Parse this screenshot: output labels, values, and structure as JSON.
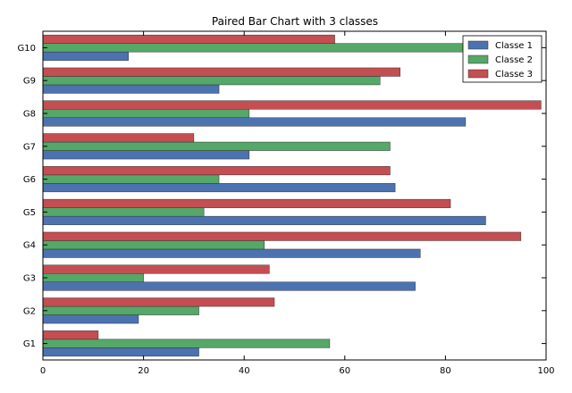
{
  "chart_data": {
    "type": "bar",
    "orientation": "horizontal",
    "title": "Paired Bar Chart with 3 classes",
    "xlabel": "",
    "ylabel": "",
    "xlim": [
      0,
      100
    ],
    "xticks": [
      0,
      20,
      40,
      60,
      80,
      100
    ],
    "categories": [
      "G1",
      "G2",
      "G3",
      "G4",
      "G5",
      "G6",
      "G7",
      "G8",
      "G9",
      "G10"
    ],
    "series": [
      {
        "name": "Classe 1",
        "color": "#4c72b0",
        "values": [
          31,
          19,
          74,
          75,
          88,
          70,
          41,
          84,
          35,
          17
        ]
      },
      {
        "name": "Classe 2",
        "color": "#55a868",
        "values": [
          57,
          31,
          20,
          44,
          32,
          35,
          69,
          41,
          67,
          88
        ]
      },
      {
        "name": "Classe 3",
        "color": "#c44e52",
        "values": [
          11,
          46,
          45,
          95,
          81,
          69,
          30,
          99,
          71,
          58
        ]
      }
    ],
    "grid": false,
    "legend_position": "top-right"
  }
}
